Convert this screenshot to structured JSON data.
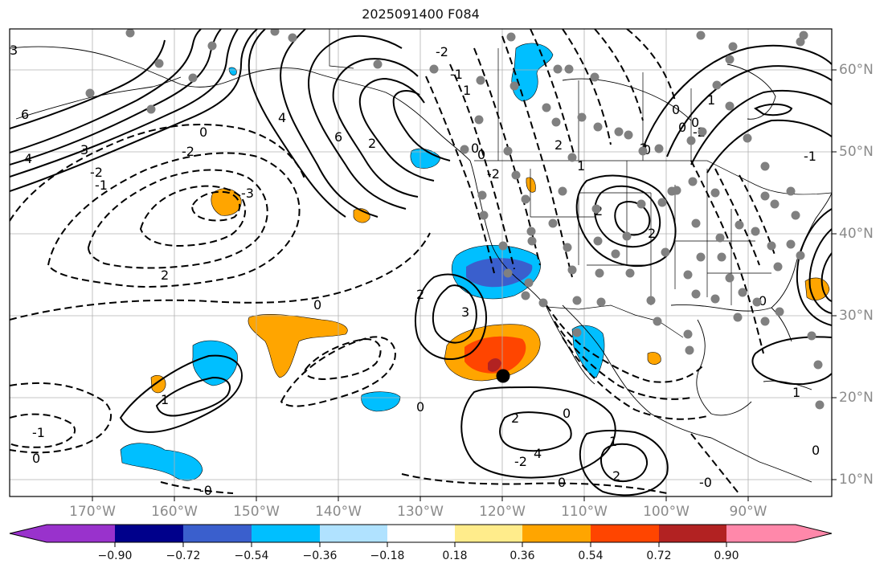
{
  "title": "2025091400 F084",
  "map": {
    "projection": "cylindrical",
    "lon_range": [
      -180,
      -80
    ],
    "lat_range": [
      8,
      65
    ],
    "lon_labels": [
      "170°W",
      "160°W",
      "150°W",
      "140°W",
      "130°W",
      "120°W",
      "110°W",
      "100°W",
      "90°W"
    ],
    "lat_labels": [
      "60°N",
      "50°N",
      "40°N",
      "30°N",
      "20°N",
      "10°N"
    ],
    "contour_labels": [
      "3",
      "6",
      "4",
      "3",
      "-2",
      "-1",
      "0",
      "-2",
      "-3",
      "2",
      "4",
      "6",
      "2",
      "-2",
      "-1",
      "1",
      "0",
      "-2",
      "2",
      "3",
      "0",
      "1",
      "-1",
      "0",
      "2",
      "4",
      "2",
      "0",
      "-2",
      "2",
      "2",
      "0",
      "0",
      "0",
      "1",
      "-1",
      "0",
      "1",
      "0",
      "2",
      "1",
      "2",
      "0",
      "-2",
      "1",
      "0",
      "-0",
      "-0",
      "0",
      "0"
    ],
    "storm_marker": "black-dot"
  },
  "colorbar": {
    "colors": [
      "#9932cc",
      "#00008b",
      "#3a5fcd",
      "#00bfff",
      "#b0e2ff",
      "#ffffff",
      "#ffec8b",
      "#ffa500",
      "#ff4500",
      "#b22222",
      "#ff88aa"
    ],
    "tick_labels": [
      "−0.90",
      "−0.72",
      "−0.54",
      "−0.36",
      "−0.18",
      "0.18",
      "0.36",
      "0.54",
      "0.72",
      "0.90"
    ]
  }
}
